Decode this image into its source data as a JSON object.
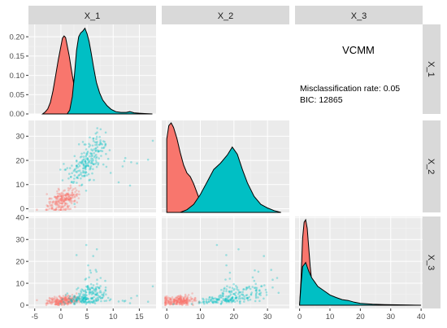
{
  "chart_data": {
    "type": "scatter-matrix",
    "variables": [
      "X_1",
      "X_2",
      "X_3"
    ],
    "colors": {
      "cluster_1": "#F8766D",
      "cluster_2": "#00BFC4",
      "panel_bg": "#EBEBEB",
      "strip_bg": "#D9D9D9",
      "grid": "#FFFFFF"
    },
    "ranges": {
      "X_1": [
        -6.2,
        18.2
      ],
      "X_2": [
        -1.5,
        36.5
      ],
      "X_3": [
        -1.5,
        40.5
      ]
    },
    "ticks": {
      "X_1": [
        -5,
        0,
        5,
        10,
        15
      ],
      "X_2": [
        0,
        10,
        20,
        30
      ],
      "X_3": [
        0,
        10,
        20,
        30,
        40
      ],
      "density_X_1": [
        0.0,
        0.05,
        0.1,
        0.15,
        0.2
      ]
    },
    "tick_labels": {
      "X_1": [
        "-5",
        "0",
        "5",
        "10",
        "15"
      ],
      "X_2": [
        "0",
        "10",
        "20",
        "30"
      ],
      "X_3": [
        "0",
        "10",
        "20",
        "30",
        "40"
      ],
      "density_X_1": [
        "0.00",
        "0.05",
        "0.10",
        "0.15",
        "0.20"
      ]
    },
    "density_ylim": [
      0,
      0.232
    ],
    "density": {
      "X_1": {
        "cluster_1": [
          [
            -3.5,
            0.0
          ],
          [
            -3.0,
            0.005
          ],
          [
            -2.5,
            0.013
          ],
          [
            -2.0,
            0.03
          ],
          [
            -1.5,
            0.06
          ],
          [
            -1.0,
            0.1
          ],
          [
            -0.5,
            0.14
          ],
          [
            0.0,
            0.175
          ],
          [
            0.3,
            0.196
          ],
          [
            0.6,
            0.202
          ],
          [
            0.9,
            0.198
          ],
          [
            1.2,
            0.178
          ],
          [
            1.6,
            0.15
          ],
          [
            2.0,
            0.115
          ],
          [
            2.5,
            0.075
          ],
          [
            3.0,
            0.04
          ],
          [
            3.5,
            0.016
          ],
          [
            4.0,
            0.004
          ],
          [
            4.5,
            0.0
          ]
        ],
        "cluster_2": [
          [
            1.2,
            0.0
          ],
          [
            1.7,
            0.01
          ],
          [
            2.2,
            0.045
          ],
          [
            2.6,
            0.1
          ],
          [
            3.0,
            0.165
          ],
          [
            3.4,
            0.2
          ],
          [
            3.8,
            0.21
          ],
          [
            4.2,
            0.215
          ],
          [
            4.6,
            0.222
          ],
          [
            5.0,
            0.208
          ],
          [
            5.4,
            0.188
          ],
          [
            5.8,
            0.158
          ],
          [
            6.3,
            0.118
          ],
          [
            6.8,
            0.082
          ],
          [
            7.4,
            0.055
          ],
          [
            8.0,
            0.036
          ],
          [
            8.8,
            0.022
          ],
          [
            9.6,
            0.012
          ],
          [
            10.5,
            0.006
          ],
          [
            11.5,
            0.004
          ],
          [
            12.5,
            0.004
          ],
          [
            13.2,
            0.006
          ],
          [
            14.0,
            0.003
          ],
          [
            15.0,
            0.002
          ],
          [
            16.0,
            0.001
          ],
          [
            17.5,
            0.0
          ]
        ]
      },
      "X_2": {
        "cluster_1": [
          [
            0.0,
            0.82
          ],
          [
            0.6,
            0.97
          ],
          [
            1.3,
            1.0
          ],
          [
            2.0,
            0.95
          ],
          [
            3.0,
            0.83
          ],
          [
            4.0,
            0.67
          ],
          [
            5.0,
            0.53
          ],
          [
            6.0,
            0.44
          ],
          [
            7.0,
            0.4
          ],
          [
            8.0,
            0.32
          ],
          [
            9.0,
            0.22
          ],
          [
            10.0,
            0.12
          ],
          [
            11.0,
            0.05
          ],
          [
            12.0,
            0.02
          ],
          [
            13.0,
            0.0
          ]
        ],
        "cluster_2": [
          [
            4.0,
            0.0
          ],
          [
            6.0,
            0.03
          ],
          [
            8.0,
            0.09
          ],
          [
            10.0,
            0.2
          ],
          [
            12.0,
            0.34
          ],
          [
            14.0,
            0.48
          ],
          [
            16.0,
            0.55
          ],
          [
            18.0,
            0.64
          ],
          [
            19.5,
            0.73
          ],
          [
            21.0,
            0.65
          ],
          [
            22.5,
            0.48
          ],
          [
            24.0,
            0.33
          ],
          [
            26.0,
            0.18
          ],
          [
            28.0,
            0.09
          ],
          [
            30.0,
            0.05
          ],
          [
            32.0,
            0.02
          ],
          [
            34.0,
            0.0
          ]
        ]
      },
      "X_3": {
        "cluster_1": [
          [
            0.0,
            0.0
          ],
          [
            0.5,
            0.32
          ],
          [
            1.0,
            0.78
          ],
          [
            1.5,
            0.97
          ],
          [
            2.0,
            1.0
          ],
          [
            2.5,
            0.9
          ],
          [
            3.0,
            0.68
          ],
          [
            3.5,
            0.45
          ],
          [
            4.0,
            0.28
          ],
          [
            5.0,
            0.12
          ],
          [
            6.0,
            0.04
          ],
          [
            7.0,
            0.0
          ]
        ],
        "cluster_2": [
          [
            0.0,
            0.0
          ],
          [
            0.5,
            0.25
          ],
          [
            1.0,
            0.45
          ],
          [
            2.0,
            0.5
          ],
          [
            3.0,
            0.4
          ],
          [
            4.0,
            0.32
          ],
          [
            5.0,
            0.27
          ],
          [
            6.0,
            0.22
          ],
          [
            8.0,
            0.17
          ],
          [
            10.0,
            0.12
          ],
          [
            12.0,
            0.09
          ],
          [
            14.0,
            0.065
          ],
          [
            16.0,
            0.055
          ],
          [
            18.0,
            0.035
          ],
          [
            20.0,
            0.022
          ],
          [
            24.0,
            0.012
          ],
          [
            28.0,
            0.007
          ],
          [
            32.0,
            0.004
          ],
          [
            36.0,
            0.002
          ],
          [
            40.0,
            0.0
          ]
        ]
      }
    },
    "scatter_approx": {
      "n_per_cluster": 220,
      "cluster_1": {
        "X_1": {
          "mean": 0.5,
          "sd": 1.5
        },
        "X_2": {
          "mean": 3.5,
          "sd": 2.8
        },
        "X_3": {
          "mean": 2.0,
          "sd": 1.2
        }
      },
      "cluster_2": {
        "X_1": {
          "mean": 5.0,
          "sd": 1.7
        },
        "X_2": {
          "mean": 19.0,
          "sd": 5.0
        },
        "X_3": {
          "mean": 5.0,
          "sd": 4.5
        }
      }
    },
    "legend_position": "none"
  },
  "info_panel": {
    "title": "VCMM",
    "misclassification": "Misclassification rate: 0.05",
    "bic": "BIC: 12865"
  }
}
